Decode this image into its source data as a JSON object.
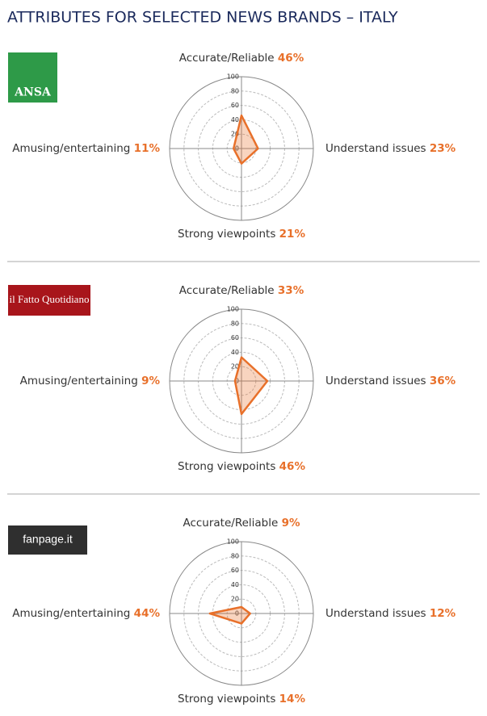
{
  "title": "ATTRIBUTES FOR SELECTED NEWS BRANDS – ITALY",
  "chart_data": [
    {
      "type": "radar",
      "brand": "ANSA",
      "categories": [
        "Accurate/Reliable",
        "Understand issues",
        "Strong viewpoints",
        "Amusing/entertaining"
      ],
      "values": [
        46,
        23,
        21,
        11
      ],
      "value_labels": [
        "46%",
        "23%",
        "21%",
        "11%"
      ],
      "color": "#e8702a",
      "rlim": [
        0,
        100
      ],
      "rticks": [
        0,
        20,
        40,
        60,
        80,
        100
      ],
      "grid": true
    },
    {
      "type": "radar",
      "brand": "il Fatto Quotidiano",
      "categories": [
        "Accurate/Reliable",
        "Understand issues",
        "Strong viewpoints",
        "Amusing/entertaining"
      ],
      "values": [
        33,
        36,
        46,
        9
      ],
      "value_labels": [
        "33%",
        "36%",
        "46%",
        "9%"
      ],
      "color": "#e8702a",
      "rlim": [
        0,
        100
      ],
      "rticks": [
        0,
        20,
        40,
        60,
        80,
        100
      ],
      "grid": true
    },
    {
      "type": "radar",
      "brand": "fanpage.it",
      "categories": [
        "Accurate/Reliable",
        "Understand issues",
        "Strong viewpoints",
        "Amusing/entertaining"
      ],
      "values": [
        9,
        12,
        14,
        44
      ],
      "value_labels": [
        "9%",
        "12%",
        "14%",
        "44%"
      ],
      "color": "#e8702a",
      "rlim": [
        0,
        100
      ],
      "rticks": [
        0,
        20,
        40,
        60,
        80,
        100
      ],
      "grid": true
    }
  ]
}
